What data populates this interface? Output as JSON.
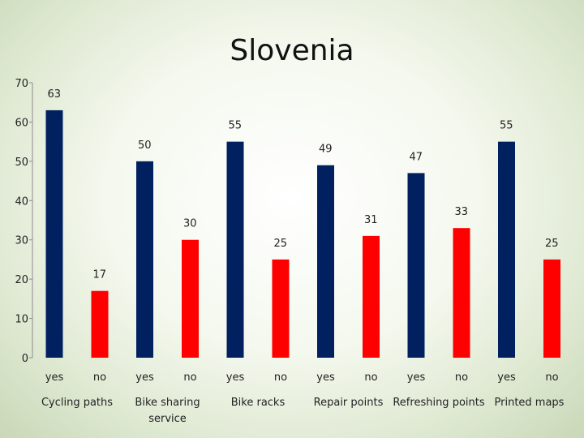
{
  "chart_data": {
    "type": "bar",
    "title": "Slovenia",
    "xlabel": "",
    "ylabel": "",
    "ylim": [
      0,
      70
    ],
    "yticks": [
      0,
      10,
      20,
      30,
      40,
      50,
      60,
      70
    ],
    "grid": false,
    "legend": "none",
    "groups": [
      "Cycling paths",
      "Bike sharing service",
      "Bike racks",
      "Repair points",
      "Refreshing points",
      "Printed maps"
    ],
    "group_labels": [
      [
        "Cycling paths"
      ],
      [
        "Bike sharing",
        "service"
      ],
      [
        "Bike racks"
      ],
      [
        "Repair points"
      ],
      [
        "Refreshing points"
      ],
      [
        "Printed maps"
      ]
    ],
    "subcategories": [
      "yes",
      "no"
    ],
    "series": [
      {
        "values": [
          63,
          50,
          55,
          49,
          47,
          55
        ],
        "color": "#002060"
      },
      {
        "values": [
          17,
          30,
          25,
          31,
          33,
          25
        ],
        "color": "#ff0000"
      }
    ]
  }
}
